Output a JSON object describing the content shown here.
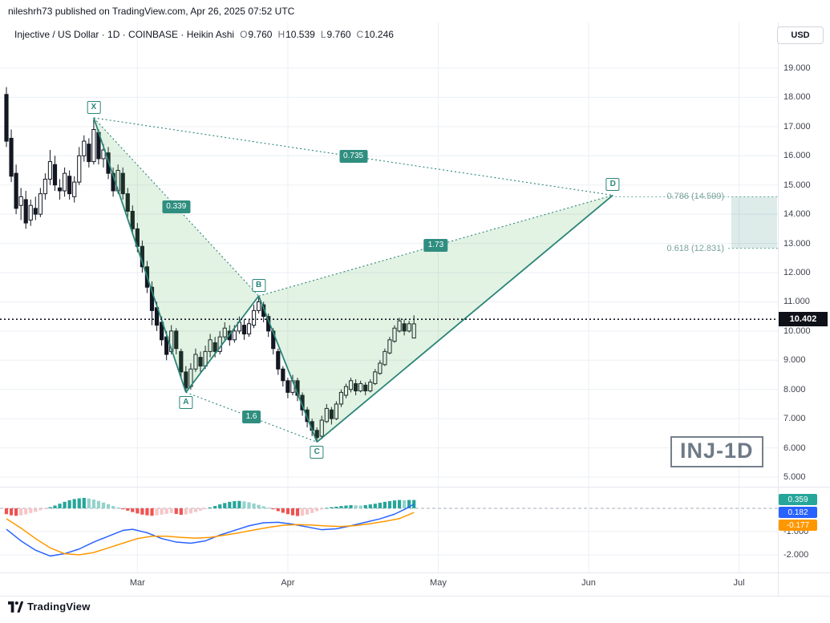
{
  "published_bar": {
    "text": "nileshrh73 published on TradingView.com, Apr 26, 2025 07:52 UTC"
  },
  "header": {
    "symbol_line": "Injective / US Dollar · 1D · COINBASE · Heikin Ashi",
    "ohlc": {
      "o": {
        "label": "O",
        "value": "9.760"
      },
      "h": {
        "label": "H",
        "value": "10.539"
      },
      "l": {
        "label": "L",
        "value": "9.760"
      },
      "c": {
        "label": "C",
        "value": "10.246"
      }
    },
    "currency_button": "USD"
  },
  "watermark": "INJ-1D",
  "footer": {
    "brand": "TradingView"
  },
  "price_axis": {
    "ticks": [
      "19.000",
      "18.000",
      "17.000",
      "16.000",
      "15.000",
      "14.000",
      "13.000",
      "12.000",
      "11.000",
      "10.000",
      "9.000",
      "8.000",
      "7.000",
      "6.000",
      "5.000"
    ],
    "last_price": "10.402"
  },
  "indicator_axis": {
    "badges": [
      {
        "text": "0.359",
        "color": "#26a69a"
      },
      {
        "text": "0.182",
        "color": "#2962ff"
      },
      {
        "text": "-0.177",
        "color": "#ff9800"
      }
    ],
    "ticks": [
      {
        "text": "-1.000",
        "value": -1
      },
      {
        "text": "-2.000",
        "value": -2
      }
    ]
  },
  "time_axis": {
    "months": [
      {
        "label": "Mar",
        "bar": 28
      },
      {
        "label": "Apr",
        "bar": 59
      },
      {
        "label": "May",
        "bar": 90
      },
      {
        "label": "Jun",
        "bar": 121
      },
      {
        "label": "Jul",
        "bar": 152
      }
    ]
  },
  "chart_data": {
    "type": "candlestick",
    "symbol": "Injective / US Dollar",
    "exchange": "COINBASE",
    "interval": "1D",
    "candle_style": "Heikin Ashi",
    "last_price": 10.402,
    "price_axis_range": [
      5,
      19
    ],
    "indicator": "MACD",
    "candles": [
      [
        18.1,
        18.35,
        16.3,
        16.5
      ],
      [
        16.6,
        16.9,
        15.1,
        15.3
      ],
      [
        15.4,
        15.7,
        14.0,
        14.2
      ],
      [
        14.3,
        14.9,
        13.8,
        14.6
      ],
      [
        14.5,
        14.8,
        13.5,
        13.7
      ],
      [
        13.8,
        14.5,
        13.6,
        14.3
      ],
      [
        14.2,
        14.6,
        13.8,
        14.0
      ],
      [
        14.0,
        14.9,
        13.9,
        14.7
      ],
      [
        14.7,
        15.4,
        14.5,
        15.2
      ],
      [
        15.2,
        16.2,
        15.0,
        15.8
      ],
      [
        15.7,
        16.0,
        14.8,
        15.0
      ],
      [
        14.9,
        15.2,
        14.5,
        14.8
      ],
      [
        14.8,
        15.6,
        14.6,
        15.4
      ],
      [
        15.3,
        15.5,
        14.5,
        14.7
      ],
      [
        14.6,
        15.3,
        14.4,
        15.1
      ],
      [
        15.1,
        16.3,
        15.0,
        16.0
      ],
      [
        16.0,
        16.7,
        15.8,
        16.5
      ],
      [
        16.4,
        16.6,
        15.6,
        15.8
      ],
      [
        15.8,
        17.25,
        15.7,
        16.9
      ],
      [
        16.8,
        16.9,
        15.7,
        15.9
      ],
      [
        15.9,
        16.4,
        15.6,
        16.2
      ],
      [
        16.1,
        16.3,
        15.2,
        15.4
      ],
      [
        15.4,
        15.6,
        14.6,
        14.8
      ],
      [
        14.8,
        15.7,
        14.7,
        15.5
      ],
      [
        15.4,
        15.6,
        14.5,
        14.7
      ],
      [
        14.7,
        14.9,
        13.9,
        14.1
      ],
      [
        14.1,
        14.3,
        13.3,
        13.5
      ],
      [
        13.5,
        13.7,
        12.7,
        12.9
      ],
      [
        12.9,
        13.1,
        12.0,
        12.2
      ],
      [
        12.2,
        12.4,
        11.3,
        11.5
      ],
      [
        11.5,
        11.7,
        10.2,
        10.7
      ],
      [
        10.8,
        11.0,
        10.0,
        10.2
      ],
      [
        10.3,
        10.5,
        9.5,
        9.7
      ],
      [
        9.8,
        10.0,
        9.0,
        9.2
      ],
      [
        9.3,
        10.2,
        9.2,
        10.0
      ],
      [
        10.0,
        10.1,
        9.2,
        9.4
      ],
      [
        9.3,
        9.4,
        8.4,
        8.6
      ],
      [
        8.6,
        8.8,
        7.9,
        8.05
      ],
      [
        8.1,
        8.9,
        8.0,
        8.7
      ],
      [
        8.7,
        9.4,
        8.6,
        9.2
      ],
      [
        9.1,
        9.3,
        8.6,
        8.8
      ],
      [
        8.8,
        9.5,
        8.7,
        9.3
      ],
      [
        9.3,
        9.9,
        9.1,
        9.7
      ],
      [
        9.6,
        9.8,
        9.1,
        9.3
      ],
      [
        9.3,
        10.0,
        9.2,
        9.8
      ],
      [
        9.8,
        10.3,
        9.7,
        10.1
      ],
      [
        10.0,
        10.2,
        9.5,
        9.7
      ],
      [
        9.7,
        10.2,
        9.6,
        10.0
      ],
      [
        10.0,
        10.5,
        9.9,
        10.3
      ],
      [
        10.2,
        10.4,
        9.7,
        9.9
      ],
      [
        9.9,
        10.4,
        9.8,
        10.25
      ],
      [
        10.2,
        10.9,
        10.1,
        10.7
      ],
      [
        10.7,
        11.2,
        10.6,
        11.0
      ],
      [
        10.9,
        11.0,
        10.3,
        10.5
      ],
      [
        10.5,
        10.6,
        9.8,
        10.0
      ],
      [
        10.0,
        10.1,
        9.2,
        9.4
      ],
      [
        9.3,
        9.4,
        8.5,
        8.7
      ],
      [
        8.7,
        8.8,
        8.1,
        8.3
      ],
      [
        8.3,
        8.4,
        7.7,
        7.9
      ],
      [
        7.9,
        8.5,
        7.8,
        8.3
      ],
      [
        8.3,
        8.4,
        7.6,
        7.8
      ],
      [
        7.8,
        7.9,
        7.1,
        7.3
      ],
      [
        7.3,
        7.4,
        6.7,
        6.9
      ],
      [
        6.9,
        7.0,
        6.4,
        6.6
      ],
      [
        6.6,
        6.7,
        6.2,
        6.35
      ],
      [
        6.4,
        7.1,
        6.3,
        6.95
      ],
      [
        6.9,
        7.5,
        6.85,
        7.35
      ],
      [
        7.3,
        7.4,
        6.8,
        7.0
      ],
      [
        7.0,
        7.6,
        6.95,
        7.5
      ],
      [
        7.5,
        8.0,
        7.4,
        7.9
      ],
      [
        7.8,
        8.2,
        7.7,
        8.1
      ],
      [
        8.0,
        8.4,
        7.9,
        8.3
      ],
      [
        8.2,
        8.35,
        7.8,
        7.95
      ],
      [
        7.95,
        8.3,
        7.9,
        8.2
      ],
      [
        8.15,
        8.25,
        7.8,
        7.95
      ],
      [
        7.95,
        8.35,
        7.9,
        8.25
      ],
      [
        8.2,
        8.7,
        8.15,
        8.6
      ],
      [
        8.55,
        9.0,
        8.5,
        8.9
      ],
      [
        8.85,
        9.4,
        8.8,
        9.3
      ],
      [
        9.25,
        9.8,
        9.2,
        9.7
      ],
      [
        9.65,
        10.2,
        9.6,
        10.1
      ],
      [
        10.0,
        10.45,
        9.95,
        10.35
      ],
      [
        10.25,
        10.4,
        9.85,
        10.0
      ],
      [
        10.0,
        10.35,
        9.95,
        10.25
      ],
      [
        9.76,
        10.539,
        9.76,
        10.246
      ]
    ],
    "pattern": {
      "name": "XABCD harmonic",
      "points": [
        {
          "label": "X",
          "bar": 19,
          "price": 17.3,
          "pos": "high"
        },
        {
          "label": "A",
          "bar": 38,
          "price": 7.9,
          "pos": "low"
        },
        {
          "label": "B",
          "bar": 53,
          "price": 11.2,
          "pos": "high"
        },
        {
          "label": "C",
          "bar": 65,
          "price": 6.2,
          "pos": "low"
        },
        {
          "label": "D",
          "bar": 126,
          "price": 14.65,
          "pos": "high"
        }
      ],
      "ratios": [
        {
          "text": "0.735",
          "from": "X",
          "to": "D"
        },
        {
          "text": "0.339",
          "from": "X",
          "to": "B"
        },
        {
          "text": "1.73",
          "from": "B",
          "to": "D"
        },
        {
          "text": "1.6",
          "from": "A",
          "to": "C"
        }
      ],
      "fib_levels": [
        {
          "text": "0.786 (14.599)",
          "price": 14.599
        },
        {
          "text": "0.618 (12.831)",
          "price": 12.831
        }
      ]
    },
    "macd": {
      "histogram": [
        -0.25,
        -0.3,
        -0.32,
        -0.3,
        -0.26,
        -0.2,
        -0.15,
        -0.08,
        -0.02,
        0.05,
        0.12,
        0.2,
        0.28,
        0.35,
        0.4,
        0.43,
        0.45,
        0.42,
        0.38,
        0.32,
        0.25,
        0.18,
        0.1,
        0.04,
        -0.04,
        -0.1,
        -0.16,
        -0.22,
        -0.27,
        -0.3,
        -0.32,
        -0.3,
        -0.27,
        -0.24,
        -0.2,
        -0.24,
        -0.28,
        -0.26,
        -0.22,
        -0.16,
        -0.1,
        -0.04,
        0.04,
        0.1,
        0.17,
        0.23,
        0.28,
        0.31,
        0.32,
        0.3,
        0.26,
        0.21,
        0.15,
        0.09,
        0.03,
        -0.04,
        -0.12,
        -0.19,
        -0.25,
        -0.3,
        -0.33,
        -0.31,
        -0.27,
        -0.2,
        -0.12,
        -0.05,
        0.02,
        0.05,
        0.07,
        0.1,
        0.12,
        0.14,
        0.13,
        0.12,
        0.14,
        0.17,
        0.2,
        0.24,
        0.28,
        0.31,
        0.34,
        0.36,
        0.35,
        0.36,
        0.36
      ],
      "macd_line": [
        [
          1,
          -0.9
        ],
        [
          4,
          -1.4
        ],
        [
          7,
          -1.8
        ],
        [
          10,
          -2.05
        ],
        [
          13,
          -1.95
        ],
        [
          16,
          -1.75
        ],
        [
          19,
          -1.45
        ],
        [
          22,
          -1.2
        ],
        [
          25,
          -0.95
        ],
        [
          27,
          -0.9
        ],
        [
          30,
          -1.05
        ],
        [
          33,
          -1.3
        ],
        [
          36,
          -1.45
        ],
        [
          39,
          -1.5
        ],
        [
          42,
          -1.4
        ],
        [
          45,
          -1.15
        ],
        [
          48,
          -0.95
        ],
        [
          51,
          -0.75
        ],
        [
          54,
          -0.62
        ],
        [
          57,
          -0.6
        ],
        [
          60,
          -0.68
        ],
        [
          63,
          -0.8
        ],
        [
          66,
          -0.92
        ],
        [
          69,
          -0.88
        ],
        [
          72,
          -0.75
        ],
        [
          75,
          -0.6
        ],
        [
          78,
          -0.45
        ],
        [
          81,
          -0.25
        ],
        [
          83,
          -0.05
        ],
        [
          85,
          0.18
        ]
      ],
      "signal_line": [
        [
          1,
          -0.45
        ],
        [
          4,
          -0.85
        ],
        [
          7,
          -1.3
        ],
        [
          10,
          -1.7
        ],
        [
          13,
          -1.95
        ],
        [
          16,
          -2.0
        ],
        [
          19,
          -1.9
        ],
        [
          22,
          -1.7
        ],
        [
          25,
          -1.5
        ],
        [
          28,
          -1.3
        ],
        [
          31,
          -1.2
        ],
        [
          34,
          -1.2
        ],
        [
          37,
          -1.25
        ],
        [
          40,
          -1.28
        ],
        [
          43,
          -1.25
        ],
        [
          46,
          -1.15
        ],
        [
          49,
          -1.05
        ],
        [
          52,
          -0.93
        ],
        [
          55,
          -0.82
        ],
        [
          58,
          -0.73
        ],
        [
          61,
          -0.7
        ],
        [
          64,
          -0.72
        ],
        [
          67,
          -0.76
        ],
        [
          70,
          -0.78
        ],
        [
          73,
          -0.74
        ],
        [
          76,
          -0.66
        ],
        [
          79,
          -0.56
        ],
        [
          82,
          -0.44
        ],
        [
          85,
          -0.18
        ]
      ]
    },
    "colors": {
      "pattern": "#2a8579",
      "pattern_fill": "rgba(76,175,80,0.16)",
      "macd_pos": "#26a69a",
      "macd_pos_weak": "#93d3cb",
      "macd_neg": "#ef5350",
      "macd_neg_weak": "#f6c6c9",
      "macd_line": "#2962ff",
      "signal_line": "#ff9800",
      "candle_ink": "#131722",
      "grid": "#eceff4"
    }
  }
}
